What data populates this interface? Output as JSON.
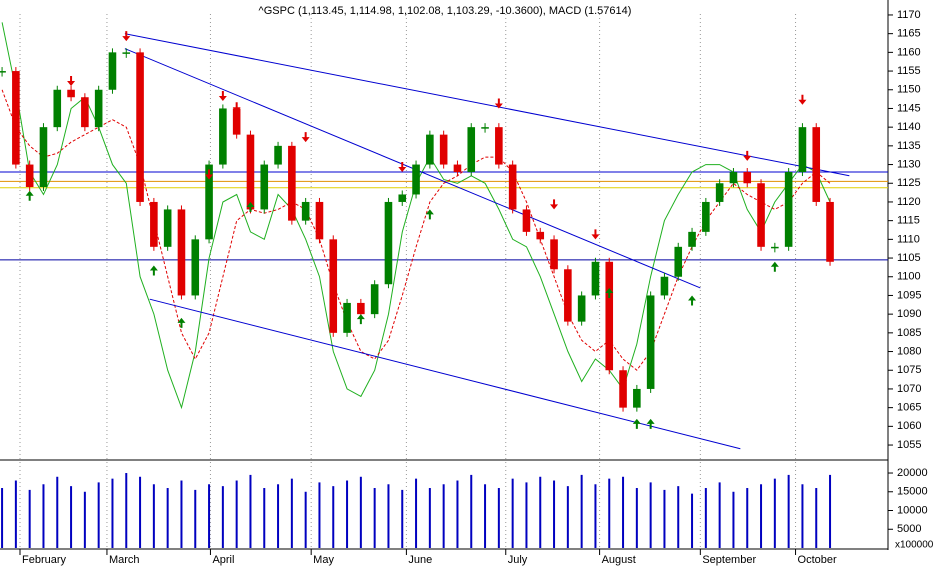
{
  "chart_data": {
    "type": "candlestick",
    "title": "^GSPC (1,113.45, 1,114.98, 1,102.08, 1,103.29, -10.3600), MACD (1.57614)",
    "volume_unit": "x100000",
    "xlim": [
      -0.15,
      64.2
    ],
    "xticks": [
      {
        "value": 1.3,
        "label": "February"
      },
      {
        "value": 7.6,
        "label": "March"
      },
      {
        "value": 15.1,
        "label": "April"
      },
      {
        "value": 22.4,
        "label": "May"
      },
      {
        "value": 29.3,
        "label": "June"
      },
      {
        "value": 36.5,
        "label": "July"
      },
      {
        "value": 43.3,
        "label": "August"
      },
      {
        "value": 50.6,
        "label": "September"
      },
      {
        "value": 57.5,
        "label": "October"
      }
    ],
    "ylim": [
      1051,
      1174
    ],
    "yticks": [
      1055,
      1060,
      1065,
      1070,
      1075,
      1080,
      1085,
      1090,
      1095,
      1100,
      1105,
      1110,
      1115,
      1120,
      1125,
      1130,
      1135,
      1140,
      1145,
      1150,
      1155,
      1160,
      1165,
      1170
    ],
    "vlim": [
      0,
      21500
    ],
    "vticks": [
      5000,
      10000,
      15000,
      20000
    ],
    "up_color": "#008000",
    "down_color": "#e00000",
    "volume_color": "#0000c0",
    "close": [
      1155,
      1130,
      1124,
      1140,
      1150,
      1148,
      1140,
      1150,
      1160,
      1160,
      1120,
      1108,
      1118,
      1095,
      1110,
      1130,
      1145,
      1138,
      1118,
      1130,
      1135,
      1115,
      1120,
      1110,
      1085,
      1093,
      1090,
      1098,
      1120,
      1122,
      1130,
      1138,
      1130,
      1128,
      1140,
      1140,
      1130,
      1118,
      1112,
      1110,
      1102,
      1088,
      1095,
      1104,
      1075,
      1065,
      1070,
      1095,
      1100,
      1108,
      1112,
      1120,
      1125,
      1128,
      1125,
      1108,
      1108,
      1128,
      1140,
      1120,
      1104
    ],
    "volume": [
      16000,
      18000,
      15500,
      17000,
      19000,
      16500,
      15000,
      17500,
      18500,
      20000,
      19000,
      17000,
      16000,
      18000,
      15500,
      17000,
      16500,
      18000,
      19500,
      16000,
      17000,
      18500,
      15000,
      17500,
      16500,
      18000,
      19000,
      16000,
      17000,
      15500,
      18500,
      16000,
      17000,
      18000,
      19500,
      17000,
      16000,
      18500,
      17500,
      19000,
      18000,
      16500,
      19500,
      17000,
      18500,
      19000,
      16000,
      17500,
      15500,
      16500,
      14500,
      16000,
      17500,
      15000,
      16000,
      17000,
      18500,
      19500,
      17000,
      16000,
      19500
    ],
    "ma_slow_color": "#e00000",
    "ma_slow": [
      1150,
      1140,
      1135,
      1132,
      1133,
      1136,
      1138,
      1140,
      1142,
      1140,
      1130,
      1115,
      1100,
      1085,
      1078,
      1085,
      1100,
      1115,
      1118,
      1117,
      1118,
      1120,
      1118,
      1110,
      1098,
      1088,
      1080,
      1078,
      1083,
      1095,
      1108,
      1120,
      1125,
      1127,
      1130,
      1132,
      1132,
      1128,
      1120,
      1110,
      1100,
      1090,
      1083,
      1080,
      1083,
      1078,
      1075,
      1080,
      1090,
      1100,
      1108,
      1115,
      1120,
      1125,
      1122,
      1120,
      1118,
      1120,
      1125,
      1128,
      1125
    ],
    "ma_fast_color": "#20b020",
    "ma_fast": [
      1168,
      1150,
      1128,
      1122,
      1130,
      1145,
      1148,
      1140,
      1130,
      1125,
      1100,
      1090,
      1075,
      1065,
      1080,
      1105,
      1120,
      1122,
      1112,
      1110,
      1122,
      1118,
      1110,
      1100,
      1080,
      1070,
      1068,
      1075,
      1090,
      1112,
      1125,
      1132,
      1126,
      1125,
      1127,
      1125,
      1118,
      1110,
      1108,
      1100,
      1090,
      1080,
      1072,
      1078,
      1075,
      1070,
      1082,
      1100,
      1115,
      1122,
      1128,
      1130,
      1130,
      1128,
      1118,
      1112,
      1120,
      1125,
      1130,
      1128,
      1120
    ],
    "trend_color": "#0000d0",
    "trendlines": [
      {
        "x": [
          8.9,
          61.4
        ],
        "y": [
          1165,
          1127
        ]
      },
      {
        "x": [
          8.9,
          50.6
        ],
        "y": [
          1161,
          1097
        ]
      },
      {
        "x": [
          10.7,
          53.5
        ],
        "y": [
          1094,
          1054
        ]
      }
    ],
    "levels": [
      {
        "y": 1128,
        "color": "#0000d0"
      },
      {
        "y": 1125.5,
        "color": "#e09000"
      },
      {
        "y": 1123.8,
        "color": "#e0d000"
      },
      {
        "y": 1104.5,
        "color": "#0000a0"
      }
    ],
    "signals_down": [
      {
        "x": 9,
        "y": 1163
      },
      {
        "x": 5,
        "y": 1151
      },
      {
        "x": 15,
        "y": 1126
      },
      {
        "x": 16,
        "y": 1147
      },
      {
        "x": 17,
        "y": 1144
      },
      {
        "x": 22,
        "y": 1136
      },
      {
        "x": 29,
        "y": 1128
      },
      {
        "x": 36,
        "y": 1145
      },
      {
        "x": 40,
        "y": 1118
      },
      {
        "x": 43,
        "y": 1110
      },
      {
        "x": 45,
        "y": 1071
      },
      {
        "x": 54,
        "y": 1131
      },
      {
        "x": 58,
        "y": 1146
      },
      {
        "x": 59,
        "y": 1128
      }
    ],
    "signals_up": [
      {
        "x": 2,
        "y": 1123
      },
      {
        "x": 11,
        "y": 1103
      },
      {
        "x": 13,
        "y": 1089
      },
      {
        "x": 18,
        "y": 1120
      },
      {
        "x": 26,
        "y": 1090
      },
      {
        "x": 31,
        "y": 1118
      },
      {
        "x": 44,
        "y": 1097
      },
      {
        "x": 46,
        "y": 1062
      },
      {
        "x": 47,
        "y": 1062
      },
      {
        "x": 50,
        "y": 1095
      },
      {
        "x": 56,
        "y": 1104
      }
    ]
  }
}
